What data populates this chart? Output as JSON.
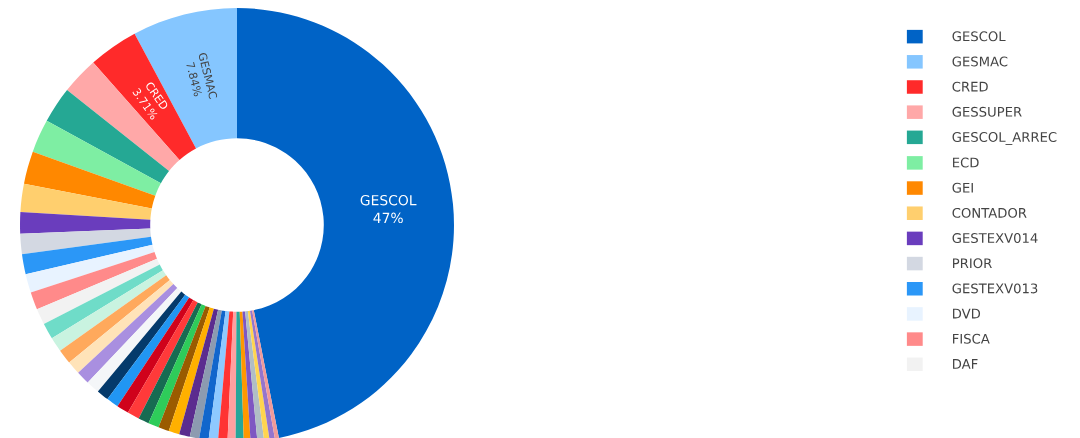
{
  "chart_data": {
    "type": "donut",
    "legend": "right",
    "categories": [
      "GESCOL",
      "GESMAC",
      "CRED",
      "GESSUPER",
      "GESCOL_ARREC",
      "ECD",
      "GEI",
      "CONTADOR",
      "GESTEXV014",
      "PRIOR",
      "GESTEXV013",
      "DVD",
      "FISCA",
      "DAF",
      null,
      null,
      null,
      null,
      null,
      null,
      null,
      null,
      null,
      null,
      null,
      null,
      null,
      null,
      null,
      null,
      null,
      null,
      null,
      null,
      null,
      null,
      null,
      null,
      null,
      null,
      null
    ],
    "values": [
      47,
      7.84,
      3.71,
      2.8,
      2.7,
      2.5,
      2.45,
      2.1,
      1.6,
      1.5,
      1.5,
      1.4,
      1.3,
      1.2,
      1.2,
      1.1,
      1.1,
      1.0,
      1.0,
      1.0,
      0.9,
      0.9,
      0.9,
      0.9,
      0.8,
      0.8,
      0.8,
      0.8,
      0.8,
      0.7,
      0.7,
      0.7,
      0.7,
      0.6,
      0.6,
      0.5,
      0.5,
      0.5,
      0.4,
      0.4,
      0.3
    ],
    "value_labels": [
      "47%",
      "7.84%",
      "3.71%",
      null,
      null,
      null,
      null,
      null,
      null,
      null,
      null,
      null,
      null,
      null,
      null,
      null,
      null,
      null,
      null,
      null,
      null,
      null,
      null,
      null,
      null,
      null,
      null,
      null,
      null,
      null,
      null,
      null,
      null,
      null,
      null,
      null,
      null,
      null,
      null,
      null,
      null
    ],
    "colors": [
      "#0063c6",
      "#85c6ff",
      "#ff2a2a",
      "#ffa8a8",
      "#25a894",
      "#7eeea3",
      "#ff8800",
      "#ffcf6e",
      "#6a3dbd",
      "#d3d8e2",
      "#2b97f7",
      "#e8f3ff",
      "#ff8a8a",
      "#f2f2f2",
      "#6fdcc8",
      "#c9f3e0",
      "#ffa95c",
      "#ffe3b8",
      "#a98fe0",
      "#f4f6f8",
      "#043a6b",
      "#2196f3",
      "#d0021b",
      "#ff3a3a",
      "#176b52",
      "#2ecc5a",
      "#9a5b00",
      "#ffb000",
      "#5b2c8f",
      "#8c9bb0",
      "#1166cc",
      "#8ec9ff",
      "#ff3333",
      "#ffa0a0",
      "#26a69a",
      "#ff9800",
      "#7e57c2",
      "#b0bec5",
      "#ffd54f",
      "#9575cd",
      "#ef9a9a"
    ]
  }
}
